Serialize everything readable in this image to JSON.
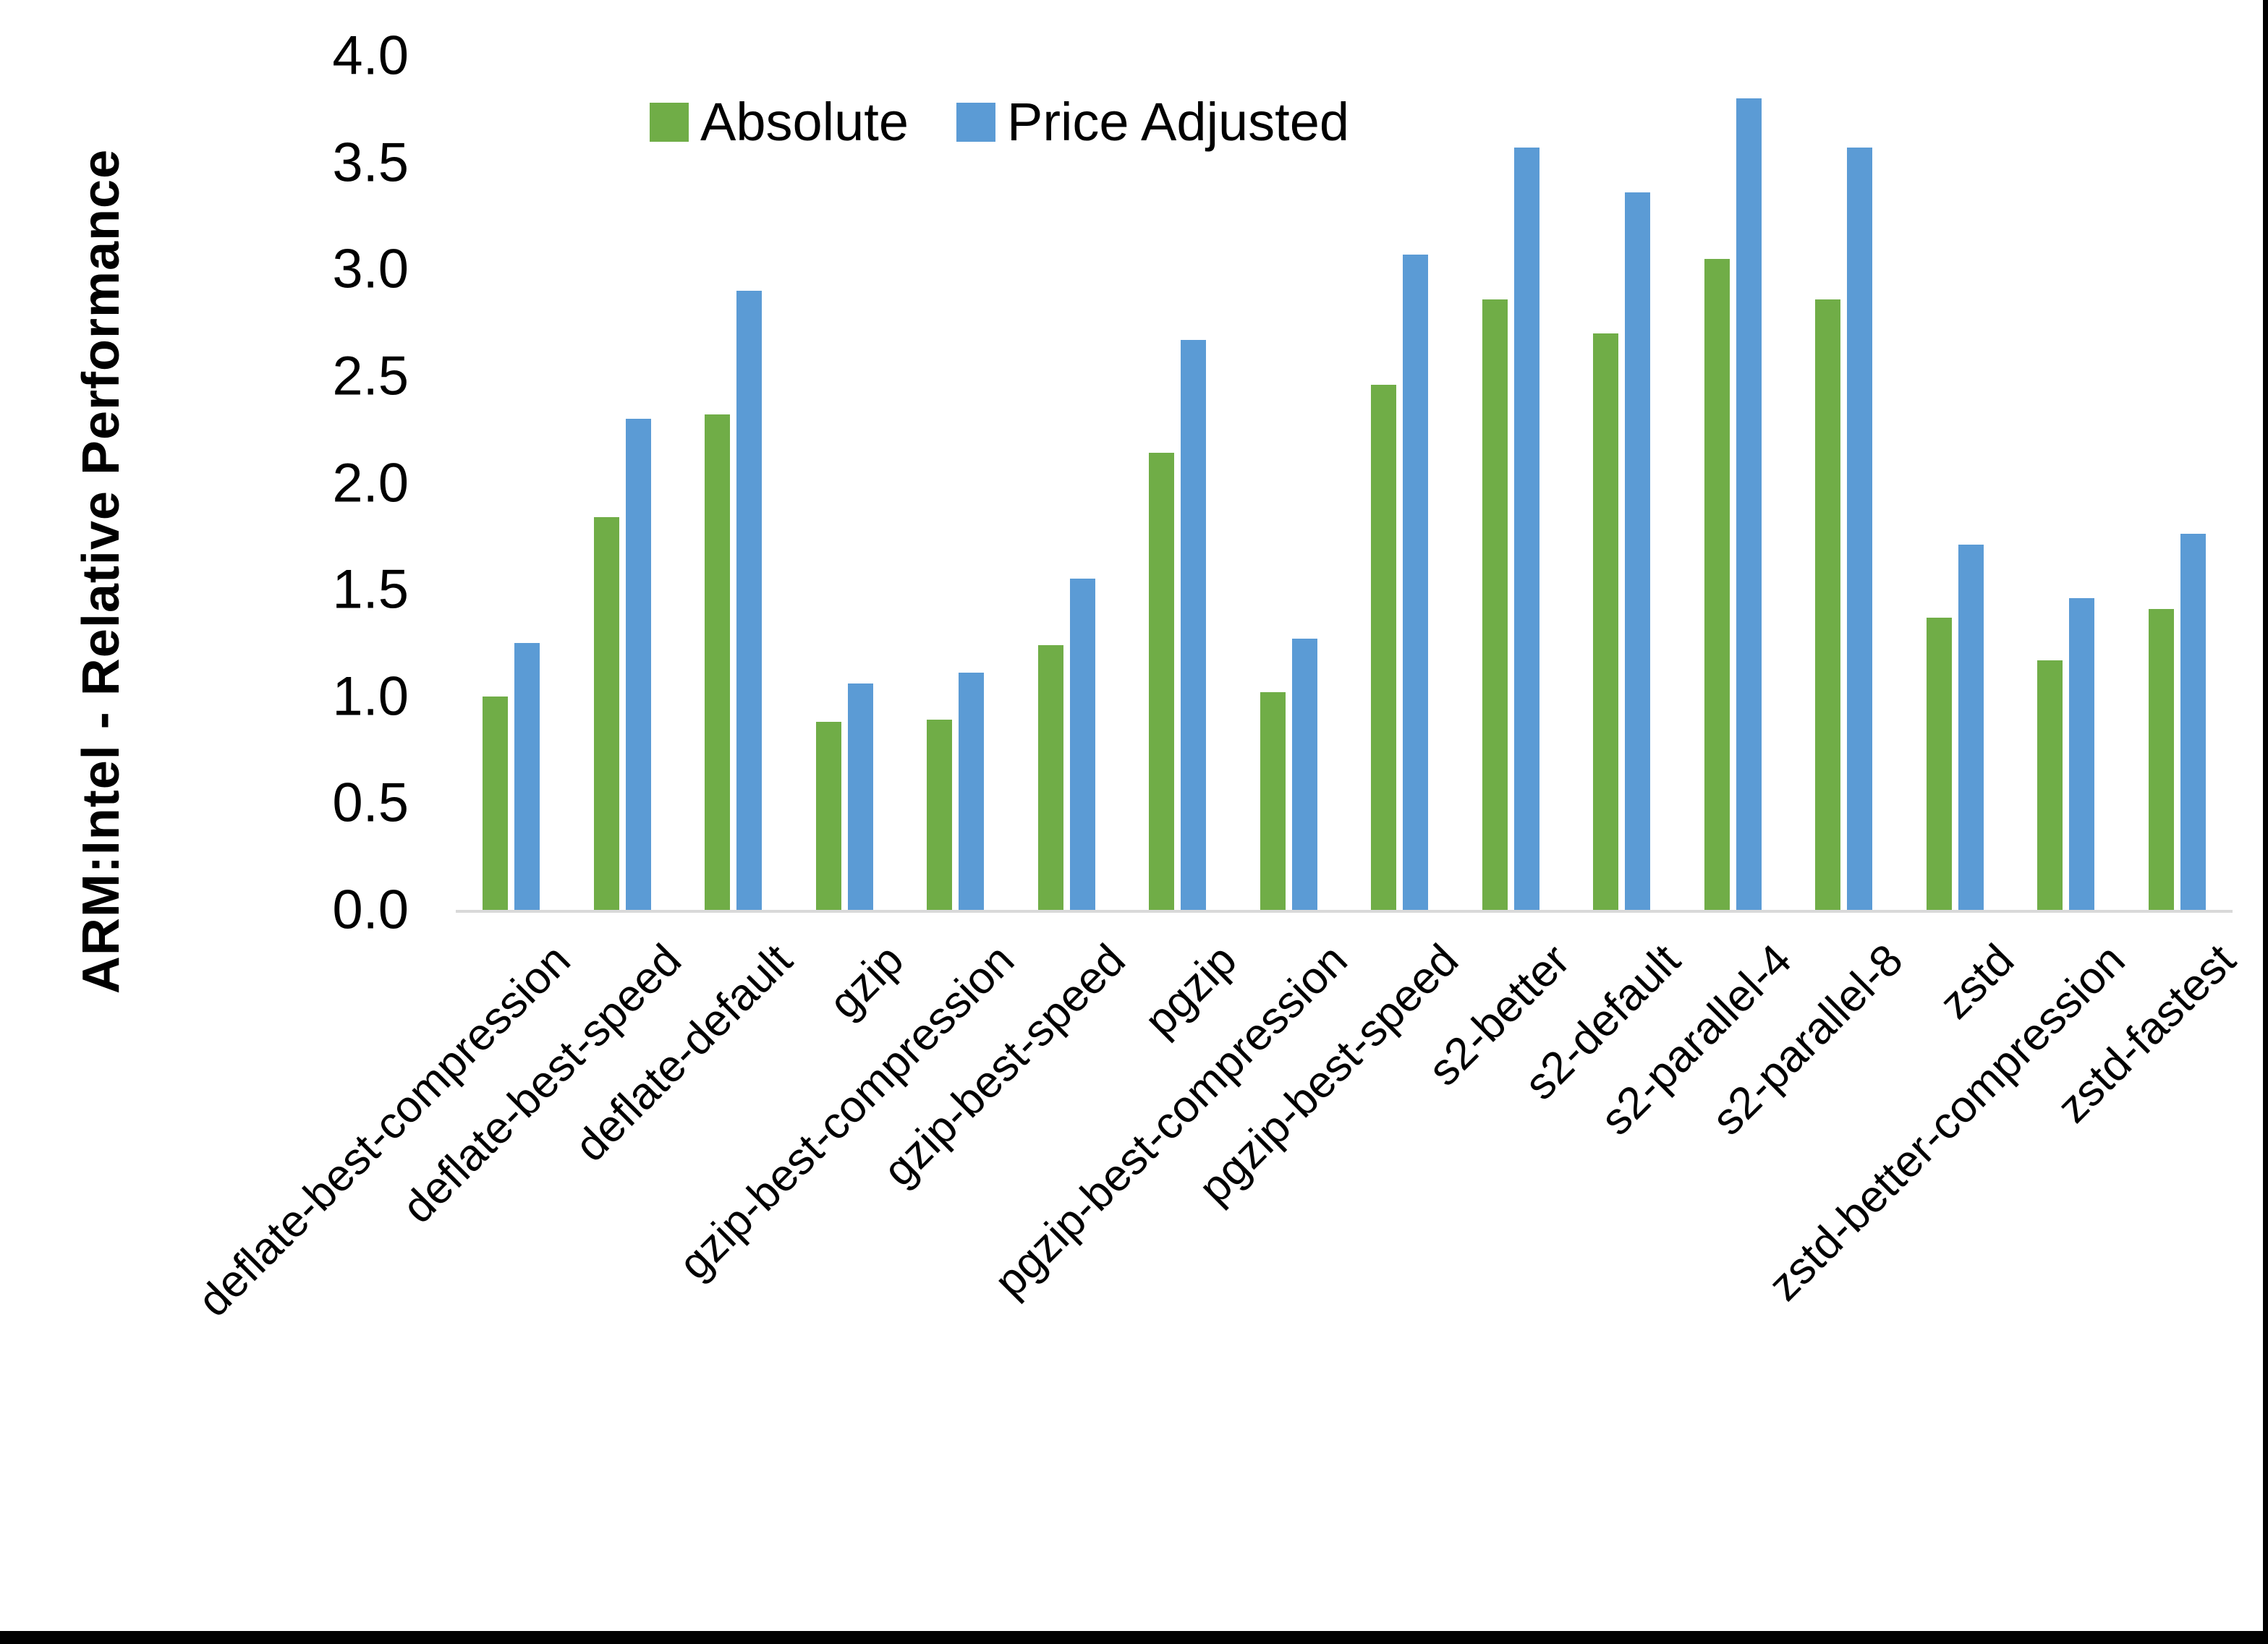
{
  "chart_data": {
    "type": "bar",
    "title": "",
    "xlabel": "",
    "ylabel": "ARM:Intel - Relative Performance",
    "ylim": [
      0.0,
      4.0
    ],
    "y_ticks": [
      "0.0",
      "0.5",
      "1.0",
      "1.5",
      "2.0",
      "2.5",
      "3.0",
      "3.5",
      "4.0"
    ],
    "grid": false,
    "legend_position": "top-center",
    "categories": [
      "deflate-best-compression",
      "deflate-best-speed",
      "deflate-default",
      "gzip",
      "gzip-best-compression",
      "gzip-best-speed",
      "pgzip",
      "pgzip-best-compression",
      "pgzip-best-speed",
      "s2-better",
      "s2-default",
      "s2-parallel-4",
      "s2-parallel-8",
      "zstd",
      "zstd-better-compression",
      "zstd-fastest"
    ],
    "series": [
      {
        "name": "Absolute",
        "color": "#70AD47",
        "values": [
          1.0,
          1.84,
          2.32,
          0.88,
          0.89,
          1.24,
          2.14,
          1.02,
          2.46,
          2.86,
          2.7,
          3.05,
          2.86,
          1.37,
          1.17,
          1.41
        ]
      },
      {
        "name": "Price Adjusted",
        "color": "#5B9BD5",
        "values": [
          1.25,
          2.3,
          2.9,
          1.06,
          1.11,
          1.55,
          2.67,
          1.27,
          3.07,
          3.57,
          3.36,
          3.8,
          3.57,
          1.71,
          1.46,
          1.76
        ]
      }
    ]
  },
  "axis": {
    "line_color": "#D9D9D9",
    "text_color": "#000000"
  },
  "page": {
    "background": "#FFFFFF",
    "border_color": "#000000"
  }
}
